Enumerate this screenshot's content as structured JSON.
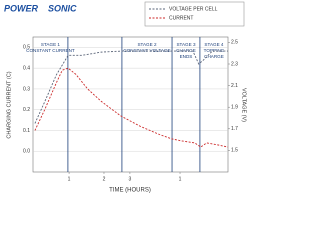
{
  "chart_data": {
    "type": "line",
    "logo": [
      "POWER",
      "SONIC"
    ],
    "xlabel": "TIME (HOURS)",
    "ylabel": "CHARGING CURRENT (C)",
    "y2label": "VOLTAGE (V)",
    "xlim": [
      0,
      10
    ],
    "xticks": [
      {
        "value": 1.85,
        "label": "1"
      },
      {
        "value": 3.64,
        "label": "2"
      },
      {
        "value": 4.97,
        "label": "3"
      },
      {
        "value": 7.54,
        "label": "1"
      }
    ],
    "ylim": [
      -0.1,
      0.55
    ],
    "yticks": [
      {
        "value": 0,
        "label": "0.0"
      },
      0.1,
      0.2,
      0.3,
      0.4,
      0.5
    ],
    "y2lim": [
      1.3,
      2.55
    ],
    "y2ticks": [
      1.5,
      1.7,
      1.9,
      2.1,
      2.3,
      2.5
    ],
    "grid": true,
    "stages": [
      {
        "x": 1.79,
        "lines": [
          "STAGE 1",
          "CONSTANT CURRENT"
        ]
      },
      {
        "x": 4.56,
        "lines": [
          "STAGE 2",
          "CONSTANT VOLTAGE"
        ]
      },
      {
        "x": 7.13,
        "lines": [
          "STAGE 3",
          "CHARGE",
          "ENDS"
        ]
      },
      {
        "x": 8.56,
        "lines": [
          "STAGE 4",
          "TOPPING",
          "CHARGE"
        ]
      }
    ],
    "series": [
      {
        "name": "VOLTAGE PER CELL",
        "color": "#5a6478",
        "axis": "y2",
        "x": [
          0.1,
          0.6,
          1.2,
          1.8,
          2.5,
          3.5,
          4.6,
          7.1,
          8.2,
          8.5,
          8.7,
          9.2,
          10
        ],
        "values": [
          1.75,
          1.95,
          2.2,
          2.38,
          2.38,
          2.41,
          2.42,
          2.42,
          2.42,
          2.3,
          2.33,
          2.42,
          2.42
        ]
      },
      {
        "name": "CURRENT",
        "color": "#cc2a2a",
        "x": [
          0.1,
          0.6,
          1.2,
          1.5,
          1.8,
          2.2,
          2.8,
          3.5,
          4.5,
          5.5,
          6.5,
          7.1,
          7.6,
          8.3,
          8.6,
          8.9,
          9.5,
          10
        ],
        "values": [
          0.1,
          0.2,
          0.33,
          0.39,
          0.4,
          0.37,
          0.3,
          0.24,
          0.17,
          0.12,
          0.08,
          0.06,
          0.05,
          0.04,
          0.02,
          0.04,
          0.03,
          0.02
        ]
      }
    ]
  }
}
